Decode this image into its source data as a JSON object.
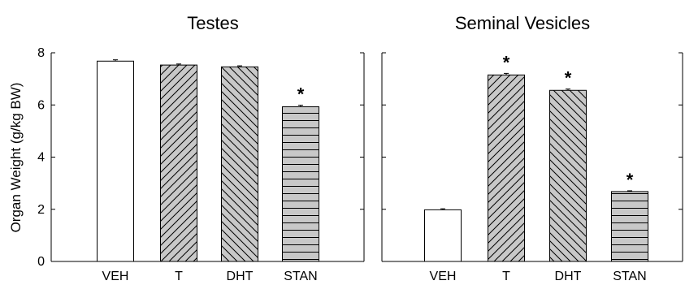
{
  "chart_data": [
    {
      "type": "bar",
      "title": "Testes",
      "ylabel": "Organ Weight (g/kg BW)",
      "ylim": [
        0,
        8
      ],
      "yticks": [
        0,
        2,
        4,
        6,
        8
      ],
      "categories": [
        "VEH",
        "T",
        "DHT",
        "STAN"
      ],
      "values": [
        7.68,
        7.53,
        7.46,
        5.93
      ],
      "errors": [
        0.05,
        0.04,
        0.04,
        0.06
      ],
      "significant": [
        "",
        "",
        "",
        "*"
      ],
      "patterns": [
        "none",
        "diag-right",
        "diag-left",
        "horizontal"
      ],
      "fill_colors": [
        "#ffffff",
        "#c8c8c8",
        "#c8c8c8",
        "#c8c8c8"
      ]
    },
    {
      "type": "bar",
      "title": "Seminal Vesicles",
      "ylabel": "",
      "ylim": [
        0,
        8
      ],
      "yticks": [
        0,
        2,
        4,
        6,
        8
      ],
      "categories": [
        "VEH",
        "T",
        "DHT",
        "STAN"
      ],
      "values": [
        1.98,
        7.15,
        6.56,
        2.68
      ],
      "errors": [
        0.04,
        0.06,
        0.05,
        0.03
      ],
      "significant": [
        "",
        "*",
        "*",
        "*"
      ],
      "patterns": [
        "none",
        "diag-right",
        "diag-left",
        "horizontal"
      ],
      "fill_colors": [
        "#ffffff",
        "#c8c8c8",
        "#c8c8c8",
        "#c8c8c8"
      ]
    }
  ]
}
